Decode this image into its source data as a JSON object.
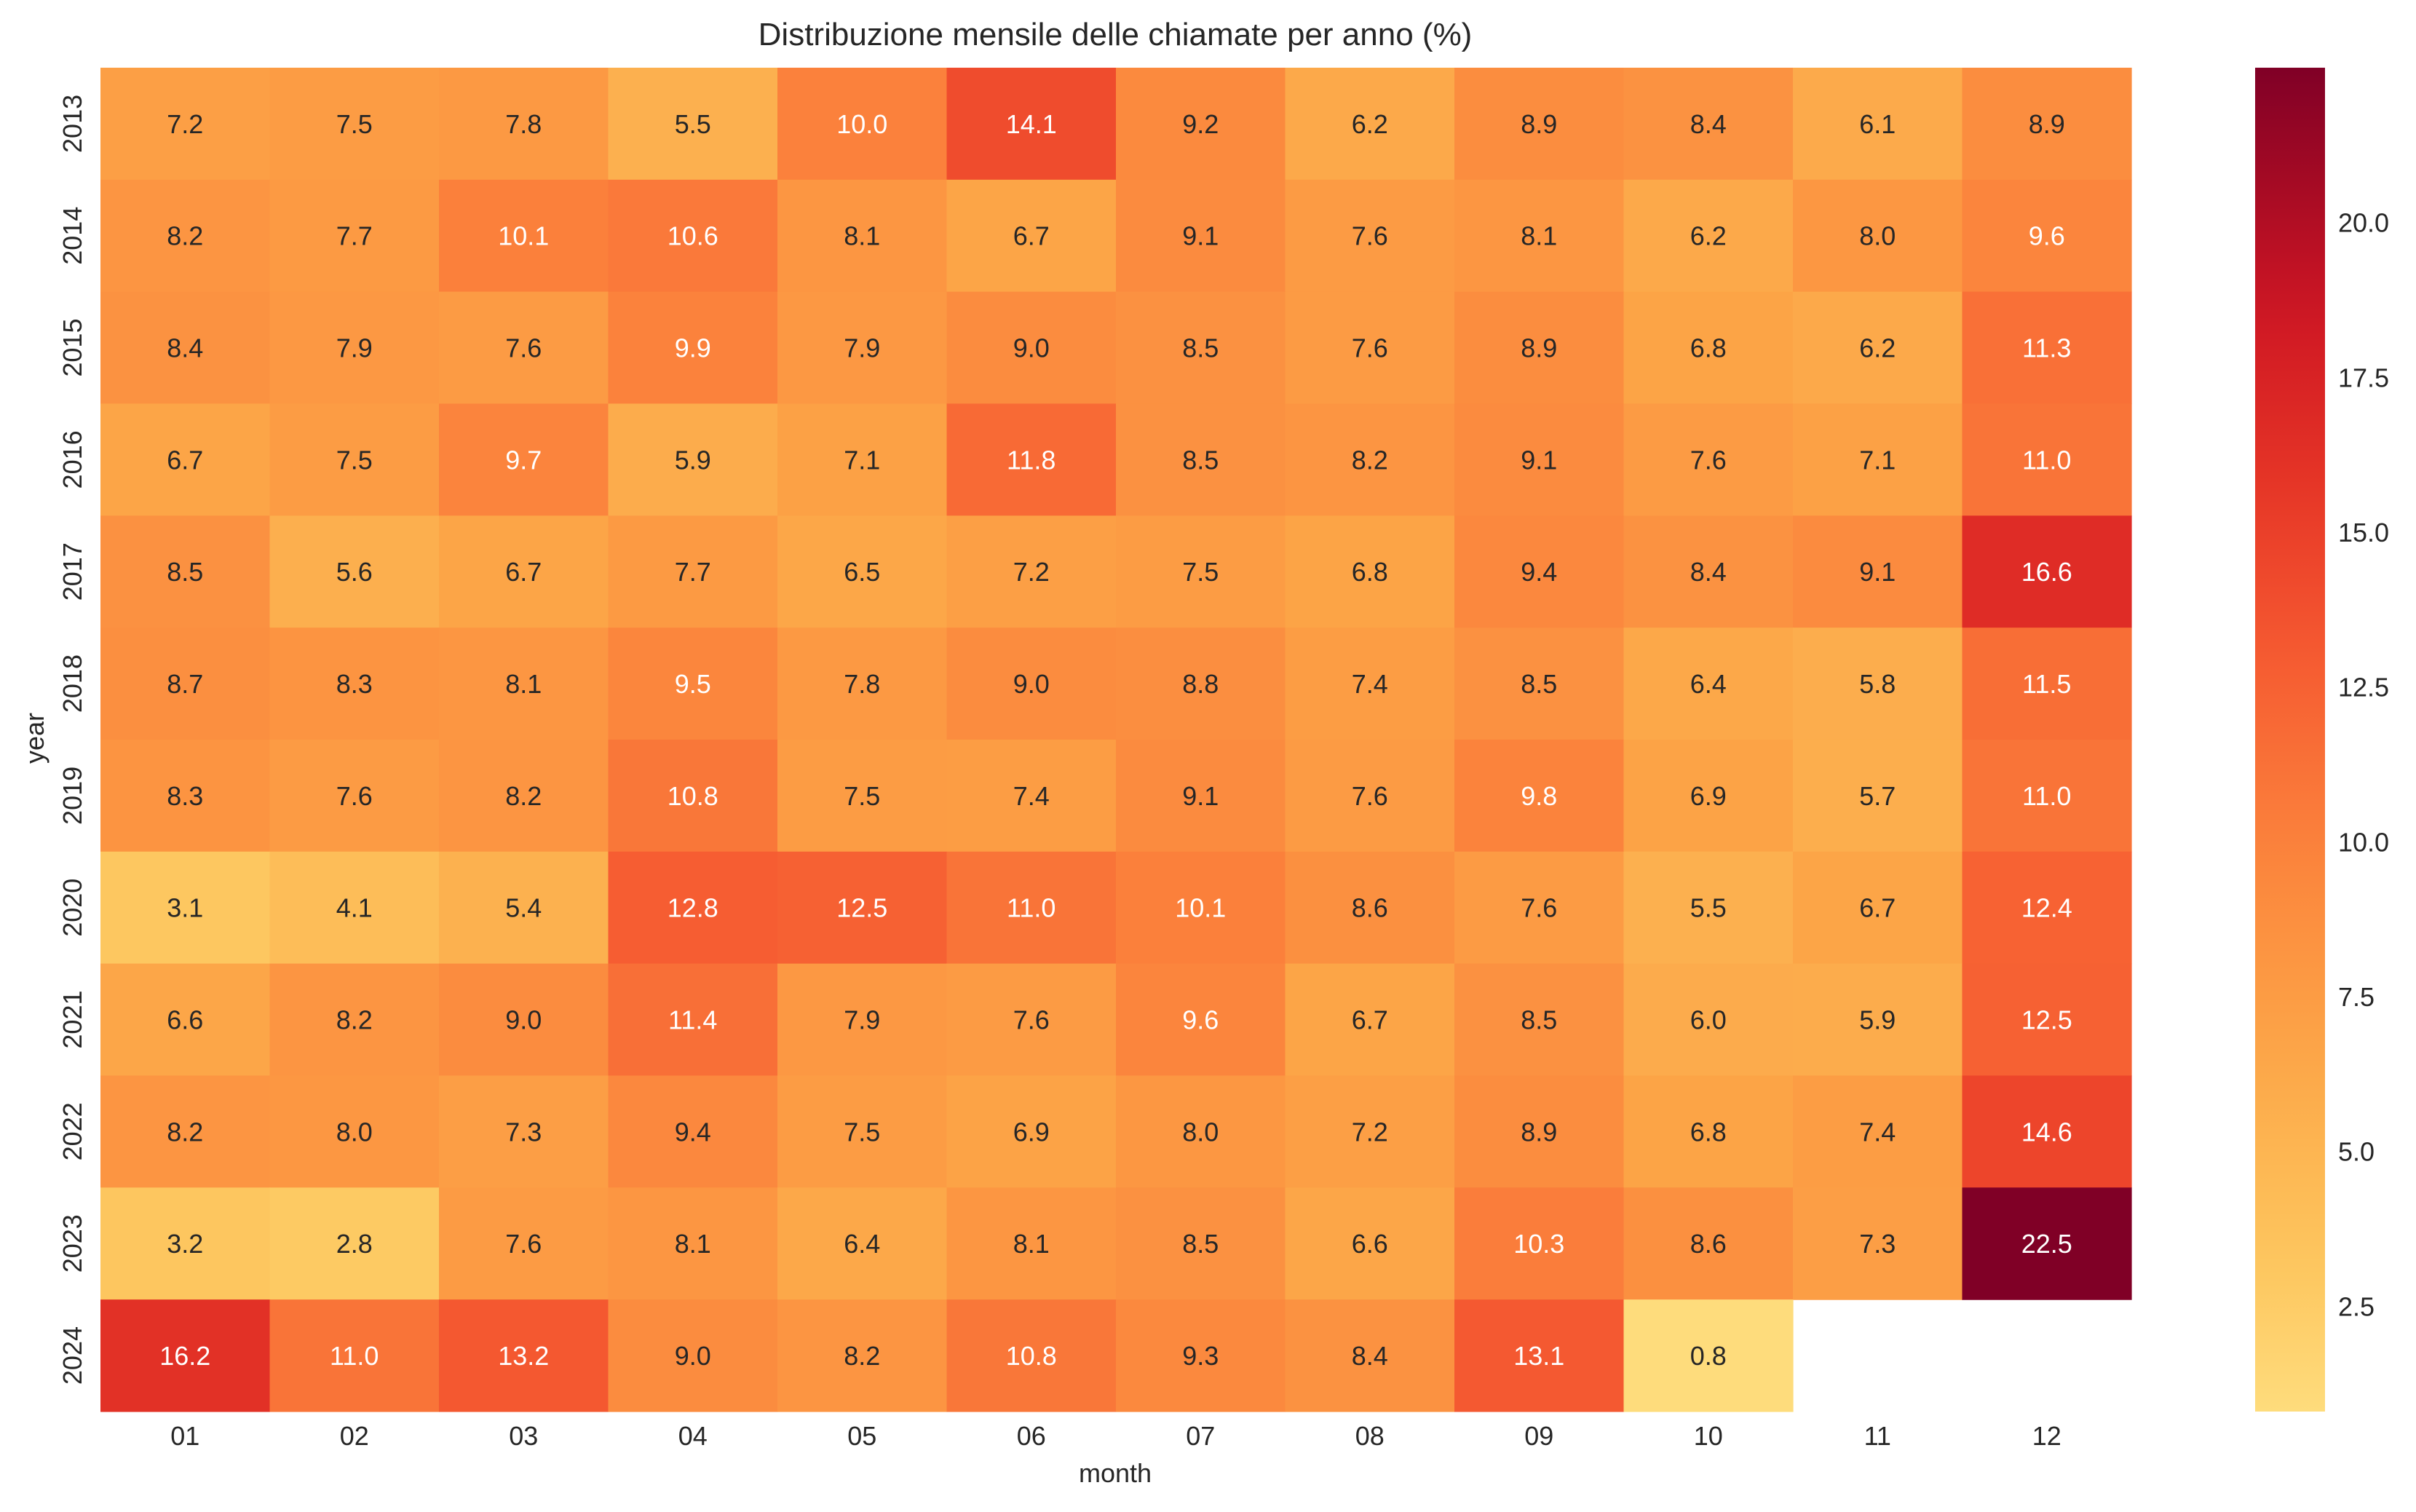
{
  "chart_data": {
    "type": "heatmap",
    "title": "Distribuzione mensile delle chiamate per anno (%)",
    "xlabel": "month",
    "ylabel": "year",
    "x_categories": [
      "01",
      "02",
      "03",
      "04",
      "05",
      "06",
      "07",
      "08",
      "09",
      "10",
      "11",
      "12"
    ],
    "y_categories": [
      "2013",
      "2014",
      "2015",
      "2016",
      "2017",
      "2018",
      "2019",
      "2020",
      "2021",
      "2022",
      "2023",
      "2024"
    ],
    "values": [
      [
        7.2,
        7.5,
        7.8,
        5.5,
        10.0,
        14.1,
        9.2,
        6.2,
        8.9,
        8.4,
        6.1,
        8.9
      ],
      [
        8.2,
        7.7,
        10.1,
        10.6,
        8.1,
        6.7,
        9.1,
        7.6,
        8.1,
        6.2,
        8.0,
        9.6
      ],
      [
        8.4,
        7.9,
        7.6,
        9.9,
        7.9,
        9.0,
        8.5,
        7.6,
        8.9,
        6.8,
        6.2,
        11.3
      ],
      [
        6.7,
        7.5,
        9.7,
        5.9,
        7.1,
        11.8,
        8.5,
        8.2,
        9.1,
        7.6,
        7.1,
        11.0
      ],
      [
        8.5,
        5.6,
        6.7,
        7.7,
        6.5,
        7.2,
        7.5,
        6.8,
        9.4,
        8.4,
        9.1,
        16.6
      ],
      [
        8.7,
        8.3,
        8.1,
        9.5,
        7.8,
        9.0,
        8.8,
        7.4,
        8.5,
        6.4,
        5.8,
        11.5
      ],
      [
        8.3,
        7.6,
        8.2,
        10.8,
        7.5,
        7.4,
        9.1,
        7.6,
        9.8,
        6.9,
        5.7,
        11.0
      ],
      [
        3.1,
        4.1,
        5.4,
        12.8,
        12.5,
        11.0,
        10.1,
        8.6,
        7.6,
        5.5,
        6.7,
        12.4
      ],
      [
        6.6,
        8.2,
        9.0,
        11.4,
        7.9,
        7.6,
        9.6,
        6.7,
        8.5,
        6.0,
        5.9,
        12.5
      ],
      [
        8.2,
        8.0,
        7.3,
        9.4,
        7.5,
        6.9,
        8.0,
        7.2,
        8.9,
        6.8,
        7.4,
        14.6
      ],
      [
        3.2,
        2.8,
        7.6,
        8.1,
        6.4,
        8.1,
        8.5,
        6.6,
        10.3,
        8.6,
        7.3,
        22.5
      ],
      [
        16.2,
        11.0,
        13.2,
        9.0,
        8.2,
        10.8,
        9.3,
        8.4,
        13.1,
        0.8,
        null,
        null
      ]
    ],
    "colormap": "YlOrRd",
    "color_range": [
      0.8,
      22.5
    ],
    "colorbar_ticks": [
      "2.5",
      "5.0",
      "7.5",
      "10.0",
      "12.5",
      "15.0",
      "17.5",
      "20.0"
    ],
    "annotations": true
  }
}
